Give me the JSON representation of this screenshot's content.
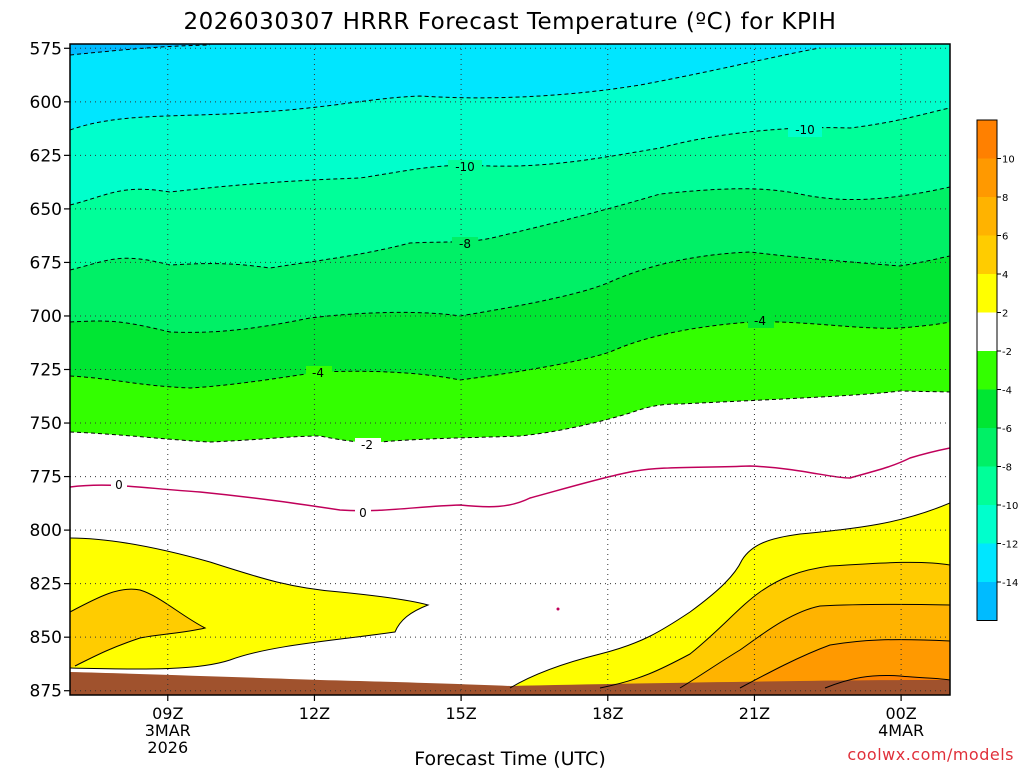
{
  "chart_data": {
    "type": "contour",
    "title": "2026030307 HRRR Forecast Temperature (ºC) for KPIH",
    "xlabel": "Forecast Time (UTC)",
    "credit": "coolwx.com/models",
    "y_axis": {
      "reversed": true,
      "range": [
        573,
        877
      ],
      "ticks": [
        "575",
        "600",
        "625",
        "650",
        "675",
        "700",
        "725",
        "750",
        "775",
        "800",
        "825",
        "850",
        "875"
      ]
    },
    "x_axis": {
      "range_hours": [
        7,
        25
      ],
      "ticks": [
        {
          "label": "09Z",
          "sub1": "3MAR",
          "sub2": "2026"
        },
        {
          "label": "12Z",
          "sub1": "",
          "sub2": ""
        },
        {
          "label": "15Z",
          "sub1": "",
          "sub2": ""
        },
        {
          "label": "18Z",
          "sub1": "",
          "sub2": ""
        },
        {
          "label": "21Z",
          "sub1": "",
          "sub2": ""
        },
        {
          "label": "00Z",
          "sub1": "4MAR",
          "sub2": ""
        }
      ]
    },
    "grid": "dotted",
    "contour_labels": [
      "-10",
      "-10",
      "-8",
      "-4",
      "-4",
      "-2",
      "0",
      "0"
    ],
    "colorbar": {
      "position": "right",
      "ticks": [
        "10",
        "8",
        "6",
        "4",
        "2",
        "-2",
        "-4",
        "-6",
        "-8",
        "-10",
        "-12",
        "-14"
      ],
      "colors": [
        "#ff8000",
        "#ff9900",
        "#ffb300",
        "#ffcc00",
        "#ffff00",
        "#ffffff",
        "#33ff00",
        "#00e633",
        "#00f066",
        "#00ff99",
        "#00ffcc",
        "#00e6ff",
        "#00bbff"
      ]
    },
    "colors": {
      "terrain": "#a0522d",
      "freezing_line": "#c0005a",
      "credit": "#e0303a"
    }
  }
}
